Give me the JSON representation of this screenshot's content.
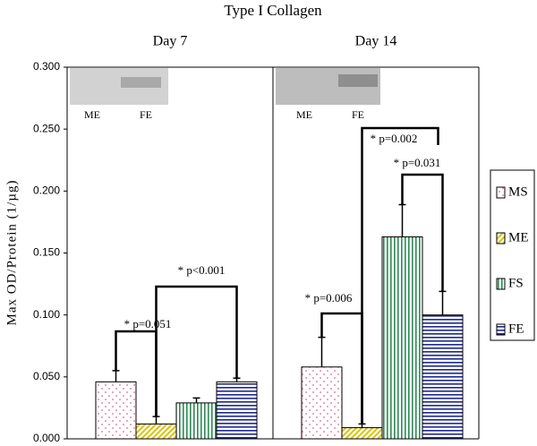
{
  "chart_data": {
    "type": "bar",
    "title": "Type I Collagen",
    "ylabel": "Max OD/Protein (1/µg)",
    "categories": [
      "Day 7",
      "Day 14"
    ],
    "series": [
      {
        "name": "MS",
        "color": "#e06a8c",
        "values": [
          0.046,
          0.058
        ],
        "errors": [
          0.009,
          0.024
        ]
      },
      {
        "name": "ME",
        "color": "#d9c400",
        "values": [
          0.012,
          0.009
        ],
        "errors": [
          0.006,
          0.003
        ]
      },
      {
        "name": "FS",
        "color": "#2f8a55",
        "values": [
          0.029,
          0.163
        ],
        "errors": [
          0.004,
          0.026
        ]
      },
      {
        "name": "FE",
        "color": "#1f2a8c",
        "values": [
          0.046,
          0.1
        ],
        "errors": [
          0.003,
          0.019
        ]
      }
    ],
    "ylim": [
      0,
      0.3
    ],
    "yticks": [
      {
        "value": 0,
        "label": "0.000"
      },
      {
        "value": 0.05,
        "label": "0.050"
      },
      {
        "value": 0.1,
        "label": "0.100"
      },
      {
        "value": 0.15,
        "label": "0.150"
      },
      {
        "value": 0.2,
        "label": "0.200"
      },
      {
        "value": 0.25,
        "label": "0.250"
      },
      {
        "value": 0.3,
        "label": "0.300"
      }
    ],
    "annotations": [
      "* p=0.051",
      "* p<0.001",
      "* p=0.006",
      "* p=0.002",
      "* p=0.031"
    ],
    "blot_labels": [
      [
        "ME",
        "FE"
      ],
      [
        "ME",
        "FE"
      ]
    ],
    "legend": "right"
  }
}
